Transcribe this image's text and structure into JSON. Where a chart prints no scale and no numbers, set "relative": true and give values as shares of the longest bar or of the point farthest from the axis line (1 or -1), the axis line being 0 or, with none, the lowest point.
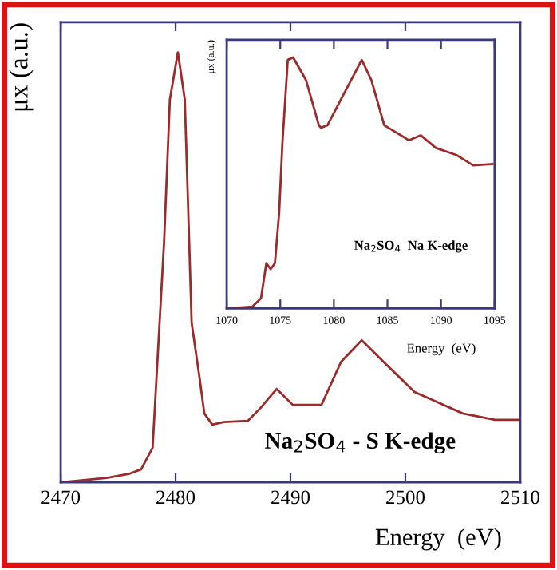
{
  "chart_data": [
    {
      "type": "line",
      "relative": true,
      "xlabel": "Energy  (eV)",
      "ylabel": "μx (a.u.)",
      "annotations": [
        "Na$_{2}$SO$_{4}$ - S K-edge"
      ],
      "xlim": [
        2470,
        2510
      ],
      "xticks": [
        2470,
        2480,
        2490,
        2500,
        2510
      ],
      "grid": false,
      "series": [
        {
          "color": "#9b2a2a",
          "x": [
            2470,
            2474,
            2476,
            2477,
            2478,
            2479,
            2479.5,
            2480.2,
            2480.8,
            2481.4,
            2482.1,
            2482.5,
            2483.2,
            2484.2,
            2486.3,
            2487.4,
            2488.8,
            2490.2,
            2492.7,
            2494.4,
            2496.2,
            2498.1,
            2500.8,
            2505,
            2507.8,
            2509.9
          ],
          "values": [
            0,
            0.01,
            0.02,
            0.03,
            0.08,
            0.56,
            0.89,
            1.0,
            0.89,
            0.37,
            0.24,
            0.16,
            0.134,
            0.14,
            0.143,
            0.173,
            0.217,
            0.18,
            0.18,
            0.28,
            0.33,
            0.28,
            0.21,
            0.16,
            0.145,
            0.145
          ]
        }
      ]
    },
    {
      "type": "line",
      "relative": true,
      "xlabel": "Energy  (eV)",
      "ylabel": "μx (a.u.)",
      "annotations": [
        "Na$_{2}$SO$_{4}$  Na K-edge"
      ],
      "xlim": [
        1070,
        1095
      ],
      "xticks": [
        1070,
        1075,
        1080,
        1085,
        1090,
        1095
      ],
      "grid": false,
      "series": [
        {
          "color": "#9b2a2a",
          "x": [
            1070,
            1072.4,
            1073.2,
            1073.7,
            1074.1,
            1074.5,
            1074.9,
            1075.2,
            1075.7,
            1076.2,
            1077.4,
            1078.6,
            1078.8,
            1079.4,
            1080.5,
            1082.6,
            1083.5,
            1084.7,
            1087,
            1088.1,
            1089.5,
            1091.5,
            1093,
            1094.8
          ],
          "values": [
            0,
            0.007,
            0.04,
            0.18,
            0.156,
            0.18,
            0.385,
            0.66,
            0.99,
            1.0,
            0.91,
            0.73,
            0.72,
            0.73,
            0.82,
            0.99,
            0.91,
            0.73,
            0.67,
            0.69,
            0.64,
            0.61,
            0.57,
            0.575
          ]
        }
      ]
    }
  ]
}
